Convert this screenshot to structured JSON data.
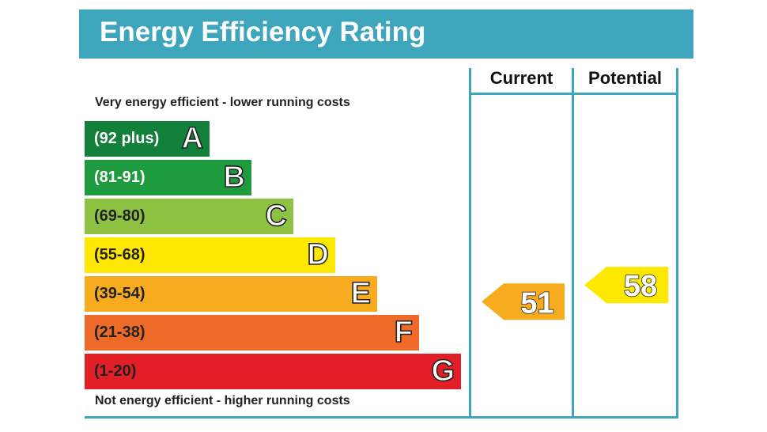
{
  "title": "Energy Efficiency Rating",
  "columns": {
    "current": "Current",
    "potential": "Potential"
  },
  "notes": {
    "top": "Very energy efficient - lower running costs",
    "bottom": "Not energy efficient - higher running costs"
  },
  "chart_data": {
    "type": "bar",
    "title": "Energy Efficiency Rating",
    "categories": [
      "A",
      "B",
      "C",
      "D",
      "E",
      "F",
      "G"
    ],
    "ranges": [
      "(92 plus)",
      "(81-91)",
      "(69-80)",
      "(55-68)",
      "(39-54)",
      "(21-38)",
      "(1-20)"
    ],
    "colors": [
      "#12803a",
      "#1f9b3f",
      "#8dc243",
      "#ffe800",
      "#f7ac1f",
      "#ee6a28",
      "#e21f26"
    ],
    "range_text_colors": [
      "#ffffff",
      "#ffffff",
      "#222222",
      "#222222",
      "#222222",
      "#222222",
      "#222222"
    ],
    "current": 51,
    "potential": 58,
    "current_band": "E",
    "potential_band": "D",
    "current_color": "#f7ac1f",
    "potential_color": "#ffe800"
  }
}
